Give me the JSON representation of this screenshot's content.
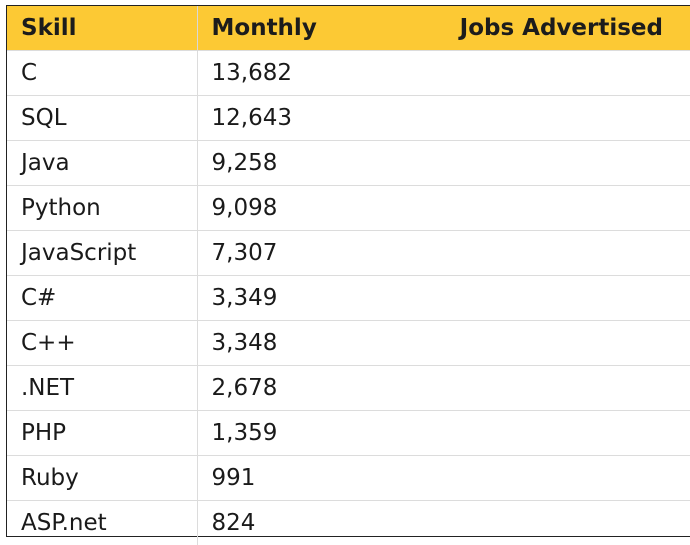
{
  "table": {
    "headers": {
      "skill": "Skill",
      "monthly": "Monthly",
      "jobs_advertised": "Jobs Advertised"
    },
    "rows": [
      {
        "skill": "C",
        "value": "13,682"
      },
      {
        "skill": "SQL",
        "value": "12,643"
      },
      {
        "skill": "Java",
        "value": "9,258"
      },
      {
        "skill": "Python",
        "value": "9,098"
      },
      {
        "skill": "JavaScript",
        "value": "7,307"
      },
      {
        "skill": "C#",
        "value": "3,349"
      },
      {
        "skill": "C++",
        "value": "3,348"
      },
      {
        "skill": ".NET",
        "value": "2,678"
      },
      {
        "skill": "PHP",
        "value": "1,359"
      },
      {
        "skill": "Ruby",
        "value": "991"
      },
      {
        "skill": "ASP.net",
        "value": "824"
      }
    ]
  },
  "colors": {
    "header_background": "#fcc934",
    "border": "#222222",
    "row_divider": "#dcdcdc"
  }
}
